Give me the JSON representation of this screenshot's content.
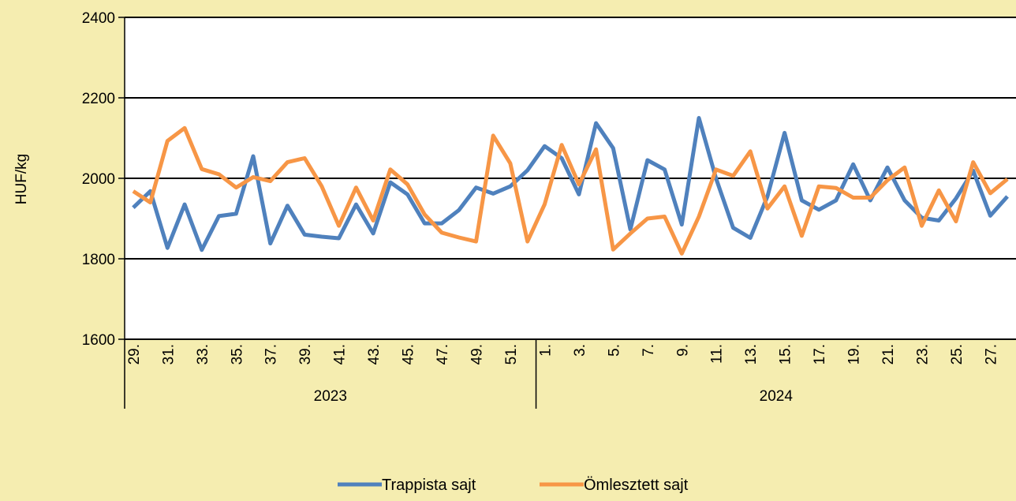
{
  "chart_data": {
    "type": "line",
    "ylabel": "HUF/kg",
    "ylim": [
      1600,
      2400
    ],
    "yticks": [
      1600,
      1800,
      2000,
      2200,
      2400
    ],
    "grid": "horizontal",
    "legend_position": "bottom",
    "x": [
      "29.",
      "30.",
      "31.",
      "32.",
      "33.",
      "34.",
      "35.",
      "36.",
      "37.",
      "38.",
      "39.",
      "40.",
      "41.",
      "42.",
      "43.",
      "44.",
      "45.",
      "46.",
      "47.",
      "48.",
      "49.",
      "50.",
      "51.",
      "52.",
      "1.",
      "2.",
      "3.",
      "4.",
      "5.",
      "6.",
      "7.",
      "8.",
      "9.",
      "10.",
      "11.",
      "12.",
      "13.",
      "14.",
      "15.",
      "16.",
      "17.",
      "18.",
      "19.",
      "20.",
      "21.",
      "22.",
      "23.",
      "24.",
      "25.",
      "26.",
      "27.",
      "28."
    ],
    "x_tick_labels": [
      "29.",
      "",
      "31.",
      "",
      "33.",
      "",
      "35.",
      "",
      "37.",
      "",
      "39.",
      "",
      "41.",
      "",
      "43.",
      "",
      "45.",
      "",
      "47.",
      "",
      "49.",
      "",
      "51.",
      "",
      "1.",
      "",
      "3.",
      "",
      "5.",
      "",
      "7.",
      "",
      "9.",
      "",
      "11.",
      "",
      "13.",
      "",
      "15.",
      "",
      "17.",
      "",
      "19.",
      "",
      "21.",
      "",
      "23.",
      "",
      "25.",
      "",
      "27.",
      ""
    ],
    "year_groups": [
      {
        "label": "2023",
        "count": 24
      },
      {
        "label": "2024",
        "count": 28
      }
    ],
    "series": [
      {
        "name": "Trappista sajt",
        "color": "#4F81BD",
        "values": [
          1927,
          1968,
          1827,
          1935,
          1822,
          1906,
          1912,
          2055,
          1838,
          1932,
          1860,
          1855,
          1851,
          1935,
          1863,
          1990,
          1960,
          1888,
          1888,
          1921,
          1977,
          1962,
          1980,
          2020,
          2080,
          2050,
          1960,
          2137,
          2075,
          1873,
          2045,
          2022,
          1885,
          2150,
          2000,
          1877,
          1852,
          1955,
          2113,
          1945,
          1922,
          1945,
          2035,
          1945,
          2027,
          1945,
          1902,
          1895,
          1950,
          2019,
          1907,
          1955
        ]
      },
      {
        "name": "Ömlesztett sajt",
        "color": "#F79646",
        "values": [
          1968,
          1940,
          2093,
          2125,
          2023,
          2010,
          1977,
          2003,
          1993,
          2040,
          2050,
          1980,
          1882,
          1977,
          1895,
          2022,
          1985,
          1910,
          1865,
          1853,
          1843,
          2106,
          2037,
          1843,
          1935,
          2083,
          1985,
          2072,
          1823,
          1863,
          1900,
          1905,
          1813,
          1905,
          2022,
          2006,
          2067,
          1925,
          1980,
          1857,
          1980,
          1976,
          1952,
          1952,
          1995,
          2027,
          1882,
          1970,
          1893,
          2040,
          1963,
          1998
        ]
      }
    ]
  }
}
